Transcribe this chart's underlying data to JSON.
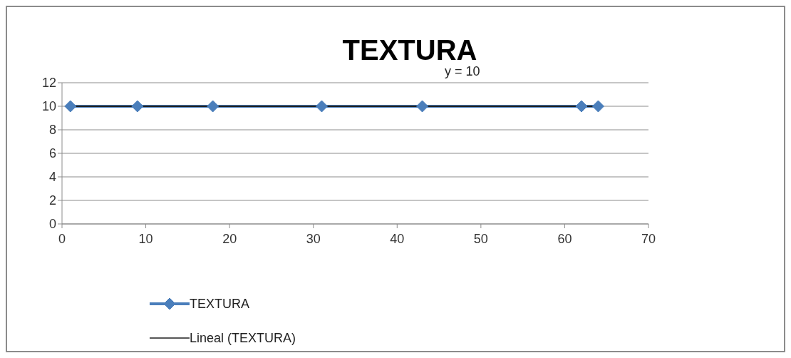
{
  "chart_data": {
    "type": "line",
    "title": "TEXTURA",
    "annotations": [
      "y = 10"
    ],
    "x": [
      1,
      9,
      18,
      31,
      43,
      62,
      64
    ],
    "series": [
      {
        "name": "TEXTURA",
        "color": "#4a7ebb",
        "values": [
          10,
          10,
          10,
          10,
          10,
          10,
          10
        ],
        "marker": "diamond"
      },
      {
        "name": "Lineal (TEXTURA)",
        "color": "#1f1f1f",
        "x": [
          1,
          64
        ],
        "values": [
          10,
          10
        ],
        "marker": "none"
      }
    ],
    "xlim": [
      0,
      70
    ],
    "xticks": [
      0,
      10,
      20,
      30,
      40,
      50,
      60,
      70
    ],
    "ylim": [
      0,
      12
    ],
    "yticks": [
      0,
      2,
      4,
      6,
      8,
      10,
      12
    ],
    "grid": "y",
    "legend": "bottom",
    "line_style": "solid"
  }
}
